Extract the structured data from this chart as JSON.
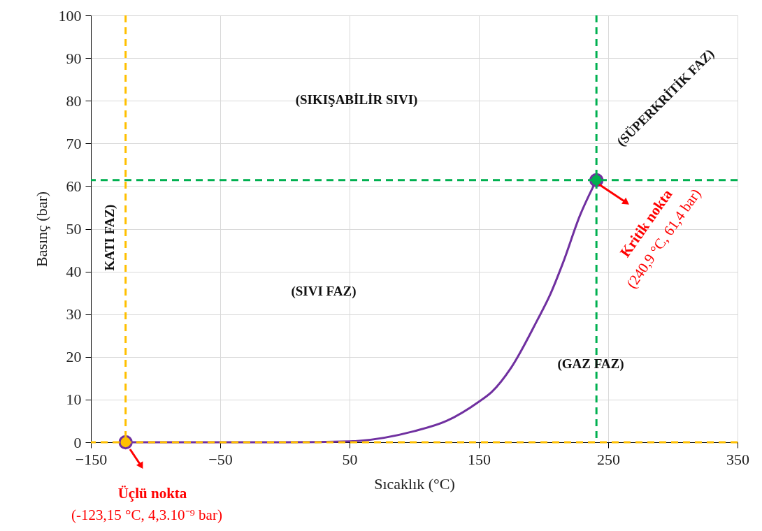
{
  "chart_data": {
    "type": "line",
    "xlabel": "Sıcaklık (°C)",
    "ylabel": "Basınç (bar)",
    "xlim": [
      -150,
      350
    ],
    "xticks": [
      -150,
      -50,
      50,
      150,
      250,
      350
    ],
    "ylim": [
      0,
      100
    ],
    "yticks": [
      0,
      10,
      20,
      30,
      40,
      50,
      60,
      70,
      80,
      90,
      100
    ],
    "grid": true,
    "legend": false,
    "line_style": "solid",
    "marker": "none",
    "series": [
      {
        "color": "#7030a0",
        "x": [
          -123.15,
          -100,
          -50,
          0,
          50,
          100,
          125,
          150,
          160,
          175,
          195,
          205,
          215,
          228,
          240.9
        ],
        "values": [
          0,
          0,
          0,
          0,
          0.2,
          2.6,
          5,
          9.5,
          11.8,
          17.5,
          28.5,
          34.5,
          42,
          53,
          61.4
        ]
      },
      {
        "type": "scatter",
        "marker": "circle",
        "colors": [
          "#ffc000",
          "#00b050"
        ],
        "x": [
          -123.15,
          240.9
        ],
        "values": [
          0,
          61.4
        ]
      }
    ],
    "ref_lines": [
      {
        "axis": "x",
        "value": -123.15,
        "color": "#ffc000",
        "line_style": "dashed"
      },
      {
        "axis": "y",
        "value": 0,
        "color": "#ffc000",
        "line_style": "dashed"
      },
      {
        "axis": "x",
        "value": 240.9,
        "color": "#00b050",
        "line_style": "dashed"
      },
      {
        "axis": "y",
        "value": 61.4,
        "color": "#00b050",
        "line_style": "dashed"
      }
    ],
    "annotations": [
      "(SIKIŞABİLİR SIVI)",
      "(SIVI FAZ)",
      "(GAZ FAZ)",
      "KATI FAZ)",
      "(SÜPERKRİTİK FAZ)",
      "Üçlü nokta",
      "(-123,15 °C, 4,3.10⁻⁹ bar)",
      "Kritik nokta",
      "(240,9 °C, 61,4 bar)"
    ]
  }
}
